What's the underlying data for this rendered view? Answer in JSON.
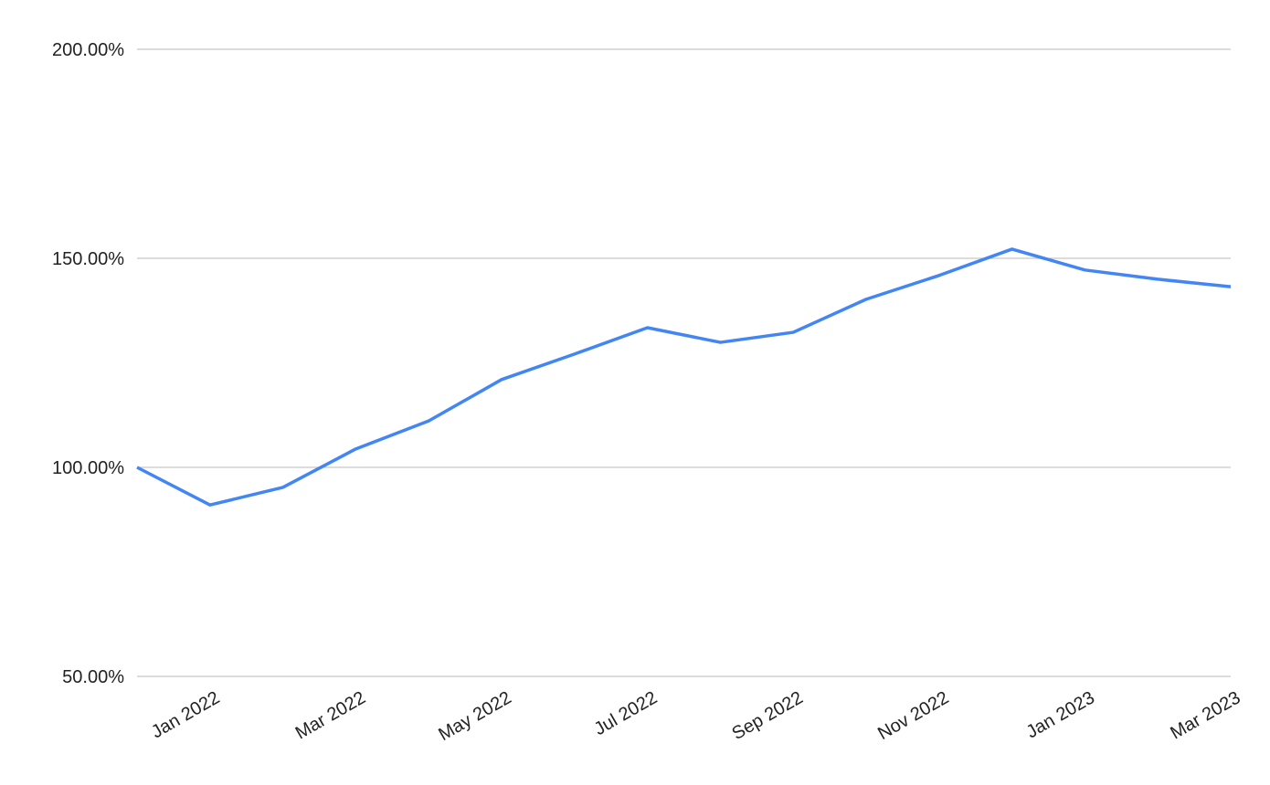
{
  "chart_data": {
    "type": "line",
    "categories": [
      null,
      "Jan 2022",
      null,
      "Mar 2022",
      null,
      "May 2022",
      null,
      "Jul 2022",
      null,
      "Sep 2022",
      null,
      "Nov 2022",
      null,
      "Jan 2023",
      null,
      "Mar 2023"
    ],
    "series": [
      {
        "color": "#4285f4",
        "values": [
          100,
          91.0,
          95.2,
          104.4,
          111.1,
          121.0,
          127.1,
          133.4,
          129.9,
          132.3,
          140.2,
          145.9,
          152.2,
          147.2,
          145.0,
          143.2
        ]
      }
    ],
    "ylim": [
      50,
      200
    ],
    "yticks": [
      {
        "value": 50,
        "label": "50.00%"
      },
      {
        "value": 100,
        "label": "100.00%"
      },
      {
        "value": 150,
        "label": "150.00%"
      },
      {
        "value": 200,
        "label": "200.00%"
      }
    ],
    "grid": true
  }
}
